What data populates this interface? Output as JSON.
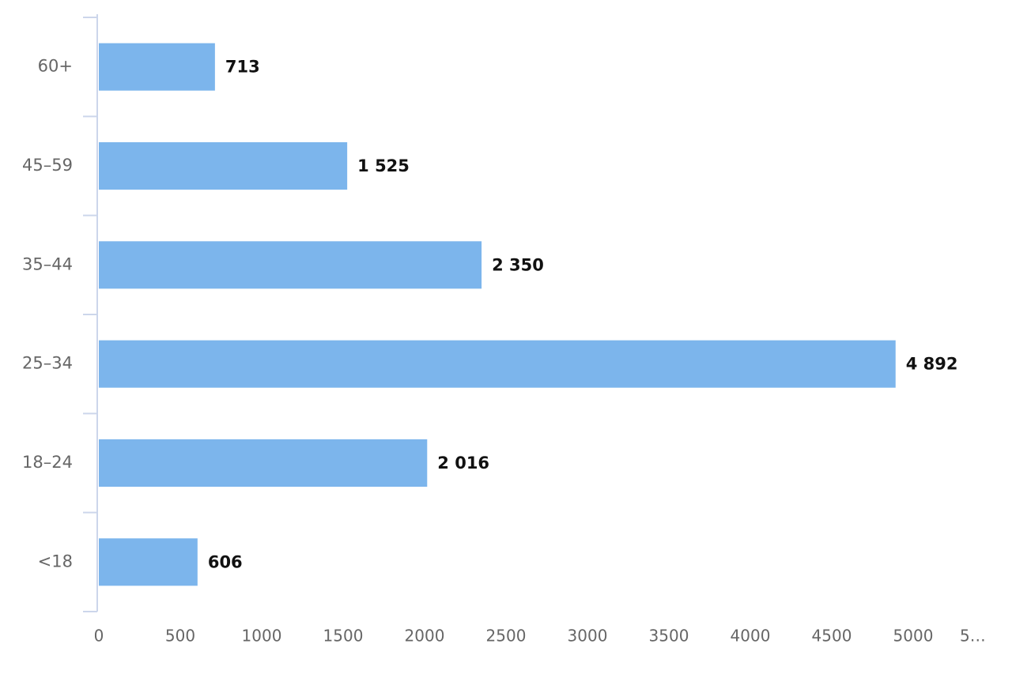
{
  "chart_data": {
    "type": "bar",
    "orientation": "horizontal",
    "categories": [
      "60+",
      "45–59",
      "35–44",
      "25–34",
      "18–24",
      "<18"
    ],
    "values": [
      713,
      1525,
      2350,
      4892,
      2016,
      606
    ],
    "value_labels": [
      "713",
      "1 525",
      "2 350",
      "4 892",
      "2 016",
      "606"
    ],
    "color": "#7cb5ec",
    "xlim": [
      0,
      5500
    ],
    "xticks": [
      0,
      500,
      1000,
      1500,
      2000,
      2500,
      3000,
      3500,
      4000,
      4500,
      5000,
      {
        "value": 5500,
        "label": "5…"
      }
    ],
    "grid": false
  }
}
